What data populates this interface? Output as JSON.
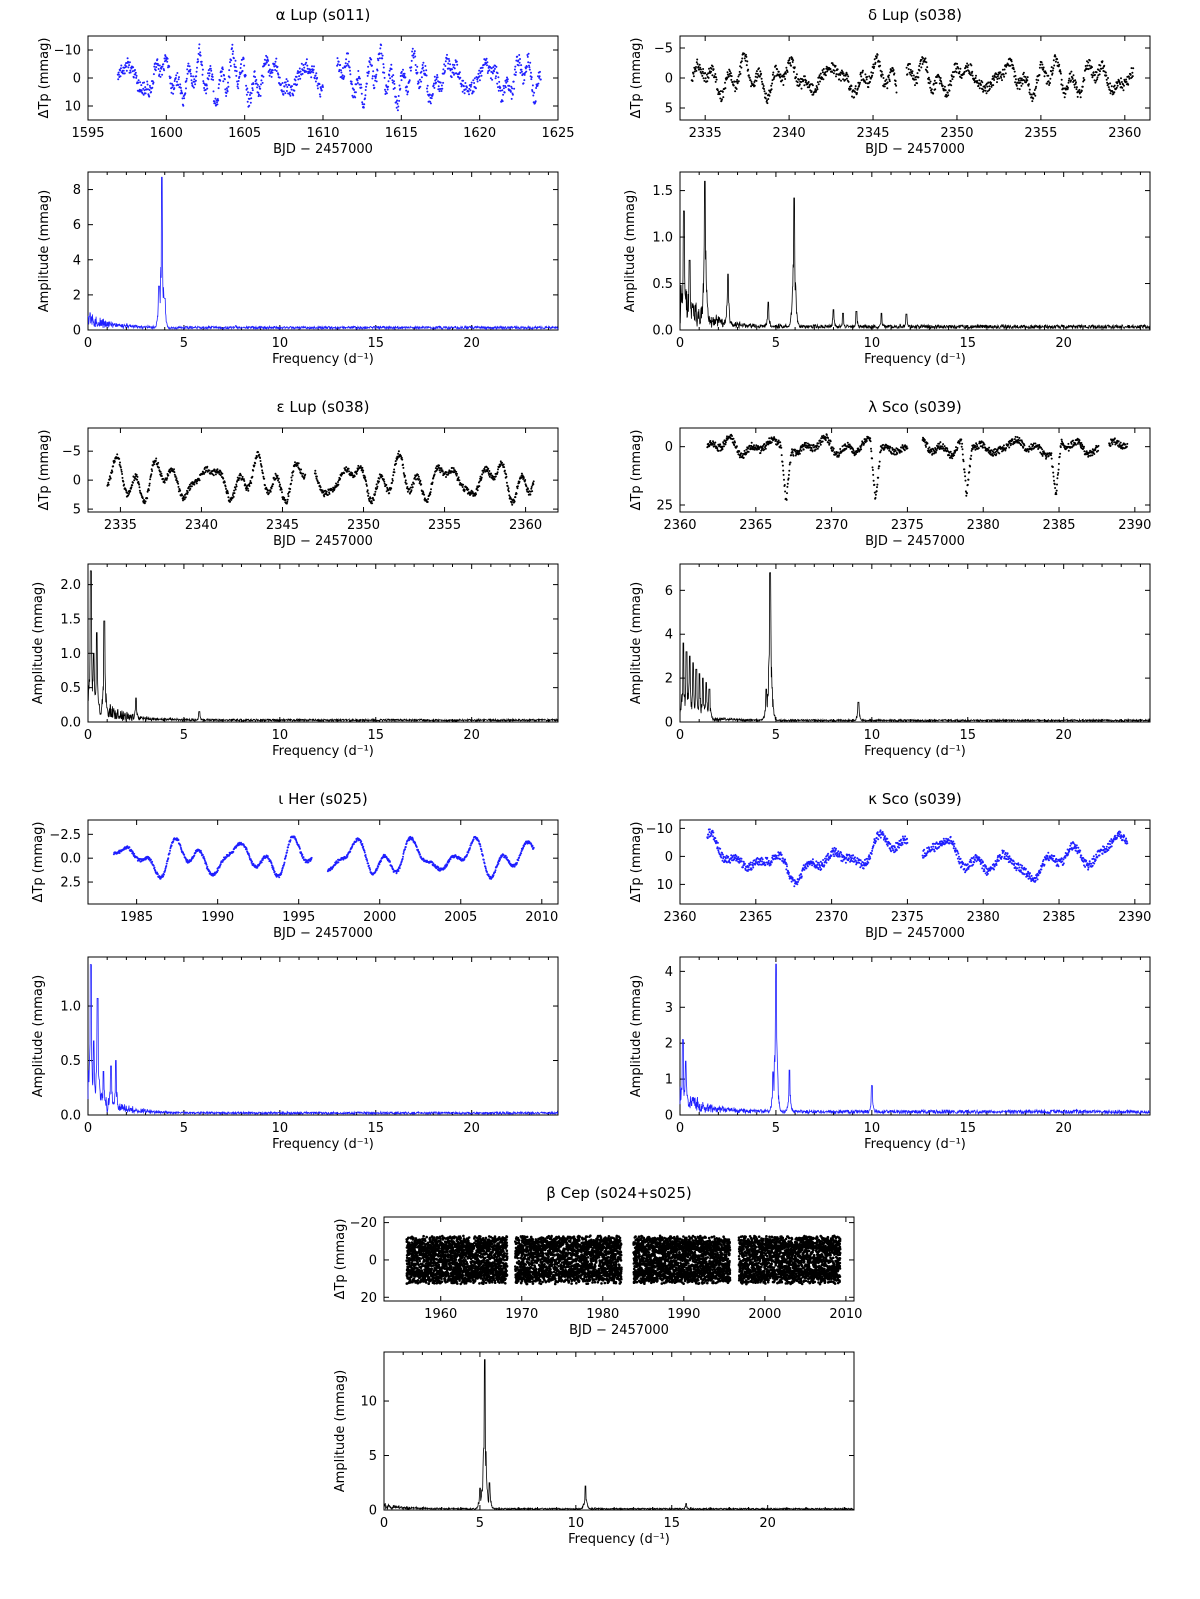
{
  "colors": {
    "blue": "#1f1fff",
    "black": "#000000"
  },
  "chart_data": [
    {
      "panel": "alpha-lup",
      "title": "α Lup  (s011)",
      "color": "#1f1fff",
      "lightcurve": {
        "type": "scatter",
        "xlabel": "BJD − 2457000",
        "ylabel": "ΔTp (mmag)",
        "xlim": [
          1595,
          1625
        ],
        "ylim": [
          15,
          -15
        ],
        "y_inverted": true,
        "xticks": [
          1595,
          1600,
          1605,
          1610,
          1615,
          1620,
          1625
        ],
        "yticks": [
          -10,
          0,
          10
        ],
        "segments": [
          [
            1596.9,
            1610.0
          ],
          [
            1610.9,
            1623.9
          ]
        ],
        "amplitude": 10,
        "noise": 2.5,
        "trend": 0
      },
      "periodogram": {
        "type": "line",
        "xlabel": "Frequency (d⁻¹)",
        "ylabel": "Amplitude (mmag)",
        "xlim": [
          0,
          24.5
        ],
        "ylim": [
          0,
          9.0
        ],
        "xticks": [
          0,
          5,
          10,
          15,
          20
        ],
        "yticks": [
          0,
          2,
          4,
          6,
          8
        ],
        "peaks": [
          [
            3.85,
            8.7
          ],
          [
            3.7,
            2.5
          ],
          [
            4.0,
            1.8
          ],
          [
            7.7,
            0.25
          ]
        ],
        "red_noise": 0.9,
        "noise_level": 0.15
      }
    },
    {
      "panel": "delta-lup",
      "title": "δ Lup  (s038)",
      "color": "#000000",
      "lightcurve": {
        "type": "scatter",
        "xlabel": "BJD − 2457000",
        "ylabel": "ΔTp (mmag)",
        "xlim": [
          2333.5,
          2361.5
        ],
        "ylim": [
          7,
          -7
        ],
        "y_inverted": true,
        "xticks": [
          2335,
          2340,
          2345,
          2350,
          2355,
          2360
        ],
        "yticks": [
          -5,
          0,
          5
        ],
        "segments": [
          [
            2334.2,
            2346.4
          ],
          [
            2347.0,
            2360.5
          ]
        ],
        "amplitude": 3.5,
        "noise": 0.9,
        "trend": 0
      },
      "periodogram": {
        "type": "line",
        "xlabel": "Frequency (d⁻¹)",
        "ylabel": "Amplitude (mmag)",
        "xlim": [
          0,
          24.5
        ],
        "ylim": [
          0,
          1.7
        ],
        "xticks": [
          0,
          5,
          10,
          15,
          20
        ],
        "yticks": [
          0.0,
          0.5,
          1.0,
          1.5
        ],
        "peaks": [
          [
            0.2,
            1.28
          ],
          [
            1.3,
            1.6
          ],
          [
            0.5,
            0.75
          ],
          [
            2.5,
            0.6
          ],
          [
            5.95,
            1.42
          ],
          [
            4.6,
            0.3
          ],
          [
            8.0,
            0.22
          ],
          [
            8.5,
            0.18
          ],
          [
            9.2,
            0.2
          ],
          [
            10.5,
            0.18
          ],
          [
            11.8,
            0.17
          ]
        ],
        "red_noise": 0.55,
        "noise_level": 0.04
      }
    },
    {
      "panel": "epsilon-lup",
      "title": "ε Lup  (s038)",
      "color": "#000000",
      "lightcurve": {
        "type": "scatter",
        "xlabel": "BJD − 2457000",
        "ylabel": "ΔTp (mmag)",
        "xlim": [
          2333.0,
          2362.0
        ],
        "ylim": [
          5.5,
          -9.0
        ],
        "y_inverted": true,
        "xticks": [
          2335,
          2340,
          2345,
          2350,
          2355,
          2360
        ],
        "yticks": [
          -5,
          0,
          5
        ],
        "segments": [
          [
            2334.2,
            2346.4
          ],
          [
            2347.0,
            2360.5
          ]
        ],
        "amplitude": 4.5,
        "noise": 0.5,
        "trend": 0
      },
      "periodogram": {
        "type": "line",
        "xlabel": "Frequency (d⁻¹)",
        "ylabel": "Amplitude (mmag)",
        "xlim": [
          0,
          24.5
        ],
        "ylim": [
          0,
          2.3
        ],
        "xticks": [
          0,
          5,
          10,
          15,
          20
        ],
        "yticks": [
          0.0,
          0.5,
          1.0,
          1.5,
          2.0
        ],
        "peaks": [
          [
            0.15,
            2.2
          ],
          [
            0.45,
            1.3
          ],
          [
            0.85,
            1.47
          ],
          [
            0.3,
            1.0
          ],
          [
            2.5,
            0.35
          ],
          [
            5.8,
            0.15
          ]
        ],
        "red_noise": 0.6,
        "noise_level": 0.03
      }
    },
    {
      "panel": "lambda-sco",
      "title": "λ Sco  (s039)",
      "color": "#000000",
      "lightcurve": {
        "type": "scatter",
        "xlabel": "BJD − 2457000",
        "ylabel": "ΔTp (mmag)",
        "xlim": [
          2360,
          2391
        ],
        "ylim": [
          28,
          -8
        ],
        "y_inverted": true,
        "xticks": [
          2360,
          2365,
          2370,
          2375,
          2380,
          2385,
          2390
        ],
        "yticks": [
          0,
          25
        ],
        "segments": [
          [
            2361.8,
            2375.0
          ],
          [
            2376.0,
            2387.6
          ],
          [
            2388.3,
            2389.5
          ]
        ],
        "amplitude": 4.5,
        "noise": 1.5,
        "trend": 0,
        "eclipses": [
          2367.0,
          2372.9,
          2378.9,
          2384.8
        ],
        "eclipse_depth": 24
      },
      "periodogram": {
        "type": "line",
        "xlabel": "Frequency (d⁻¹)",
        "ylabel": "Amplitude (mmag)",
        "xlim": [
          0,
          24.5
        ],
        "ylim": [
          0,
          7.2
        ],
        "xticks": [
          0,
          5,
          10,
          15,
          20
        ],
        "yticks": [
          0,
          2,
          4,
          6
        ],
        "peaks": [
          [
            4.7,
            6.8
          ],
          [
            4.5,
            1.5
          ],
          [
            9.3,
            0.9
          ],
          [
            0.17,
            3.6
          ],
          [
            0.34,
            3.2
          ],
          [
            0.51,
            3.0
          ],
          [
            0.68,
            2.7
          ],
          [
            0.85,
            2.4
          ],
          [
            1.02,
            2.2
          ],
          [
            1.19,
            2.0
          ],
          [
            1.36,
            1.8
          ],
          [
            1.53,
            1.5
          ]
        ],
        "red_noise": 0.7,
        "noise_level": 0.08
      }
    },
    {
      "panel": "iota-her",
      "title": "ι Her  (s025)",
      "color": "#1f1fff",
      "lightcurve": {
        "type": "scatter",
        "xlabel": "BJD − 2457000",
        "ylabel": "ΔTp (mmag)",
        "xlim": [
          1982,
          2011
        ],
        "ylim": [
          4.8,
          -4.0
        ],
        "y_inverted": true,
        "xticks": [
          1985,
          1990,
          1995,
          2000,
          2005,
          2010
        ],
        "yticks": [
          -2.5,
          0.0,
          2.5
        ],
        "segments": [
          [
            1983.6,
            1995.8
          ],
          [
            1996.8,
            2009.5
          ]
        ],
        "amplitude": 2.5,
        "noise": 0.15,
        "trend": 0
      },
      "periodogram": {
        "type": "line",
        "xlabel": "Frequency (d⁻¹)",
        "ylabel": "Amplitude (mmag)",
        "xlim": [
          0,
          24.5
        ],
        "ylim": [
          0,
          1.45
        ],
        "xticks": [
          0,
          5,
          10,
          15,
          20
        ],
        "yticks": [
          0.0,
          0.5,
          1.0
        ],
        "peaks": [
          [
            0.15,
            1.38
          ],
          [
            0.5,
            1.07
          ],
          [
            0.3,
            0.68
          ],
          [
            1.45,
            0.5
          ],
          [
            1.2,
            0.45
          ],
          [
            0.8,
            0.4
          ]
        ],
        "red_noise": 0.4,
        "noise_level": 0.02
      }
    },
    {
      "panel": "kappa-sco",
      "title": "κ Sco  (s039)",
      "color": "#1f1fff",
      "lightcurve": {
        "type": "scatter",
        "xlabel": "BJD − 2457000",
        "ylabel": "ΔTp (mmag)",
        "xlim": [
          2360,
          2391
        ],
        "ylim": [
          17,
          -13
        ],
        "y_inverted": true,
        "xticks": [
          2360,
          2365,
          2370,
          2375,
          2380,
          2385,
          2390
        ],
        "yticks": [
          -10,
          0,
          10
        ],
        "segments": [
          [
            2361.8,
            2375.0
          ],
          [
            2376.0,
            2389.5
          ]
        ],
        "amplitude": 6,
        "noise": 1.5,
        "trend": 4
      },
      "periodogram": {
        "type": "line",
        "xlabel": "Frequency (d⁻¹)",
        "ylabel": "Amplitude (mmag)",
        "xlim": [
          0,
          24.5
        ],
        "ylim": [
          0,
          4.4
        ],
        "xticks": [
          0,
          5,
          10,
          15,
          20
        ],
        "yticks": [
          0,
          1,
          2,
          3,
          4
        ],
        "peaks": [
          [
            5.0,
            4.2
          ],
          [
            4.85,
            1.2
          ],
          [
            5.7,
            1.25
          ],
          [
            10.0,
            0.82
          ],
          [
            0.15,
            2.1
          ],
          [
            0.3,
            1.5
          ]
        ],
        "red_noise": 0.8,
        "noise_level": 0.1
      }
    },
    {
      "panel": "beta-cep",
      "title": "β Cep  (s024+s025)",
      "color": "#000000",
      "lightcurve": {
        "type": "scatter",
        "xlabel": "BJD − 2457000",
        "ylabel": "ΔTp (mmag)",
        "xlim": [
          1953,
          2011
        ],
        "ylim": [
          22,
          -23
        ],
        "y_inverted": true,
        "xticks": [
          1960,
          1970,
          1980,
          1990,
          2000,
          2010
        ],
        "yticks": [
          -20,
          0,
          20
        ],
        "segments": [
          [
            1955.8,
            1968.2
          ],
          [
            1969.2,
            1982.3
          ],
          [
            1983.8,
            1995.7
          ],
          [
            1996.8,
            2009.3
          ]
        ],
        "amplitude": 13,
        "noise": 4,
        "trend": 0,
        "dense": true
      },
      "periodogram": {
        "type": "line",
        "xlabel": "Frequency (d⁻¹)",
        "ylabel": "Amplitude (mmag)",
        "xlim": [
          0,
          24.5
        ],
        "ylim": [
          0,
          14.5
        ],
        "xticks": [
          0,
          5,
          10,
          15,
          20
        ],
        "yticks": [
          0,
          5,
          10
        ],
        "peaks": [
          [
            5.25,
            13.8
          ],
          [
            5.0,
            2.0
          ],
          [
            5.5,
            2.5
          ],
          [
            10.5,
            2.2
          ],
          [
            15.75,
            0.6
          ]
        ],
        "red_noise": 0.5,
        "noise_level": 0.12
      }
    }
  ]
}
